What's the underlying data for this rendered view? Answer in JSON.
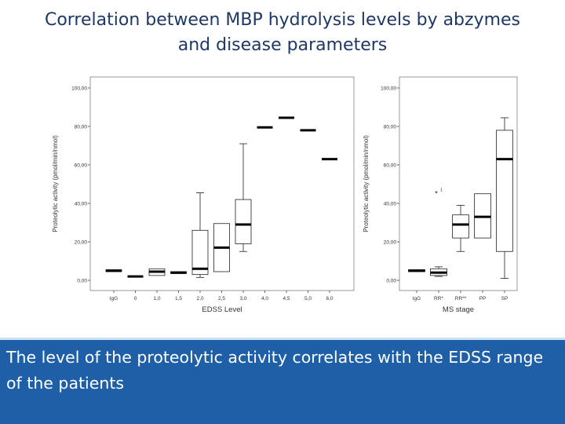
{
  "title": {
    "line1": "Correlation between MBP hydrolysis levels by abzymes",
    "line2": "and disease parameters"
  },
  "caption": "The level of the proteolytic activity correlates with the EDSS range of the patients",
  "colors": {
    "title": "#1f3864",
    "caption_background": "#1f5fa8",
    "caption_text": "#ffffff",
    "plot_background": "#ffffff",
    "box_fill": "#ffffff",
    "median": "#000000"
  },
  "chart_data": [
    {
      "type": "boxplot",
      "xlabel": "EDSS Level",
      "ylabel": "Proteolytic activity (pmol/min/nmol)",
      "ylim": [
        0,
        100
      ],
      "yticks": [
        "0,00",
        "20,00",
        "40,00",
        "60,00",
        "80,00",
        "100,00"
      ],
      "categories": [
        "IgG",
        "0",
        "1,0",
        "1,5",
        "2,0",
        "2,5",
        "3,0",
        "4,0",
        "4,5",
        "5,0",
        "6,0"
      ],
      "boxes": [
        {
          "min": 4.5,
          "q1": 4.5,
          "median": 5,
          "q3": 5.5,
          "max": 5.5
        },
        {
          "min": 2,
          "q1": 2,
          "median": 2,
          "q3": 2,
          "max": 2
        },
        {
          "min": 2.5,
          "q1": 2.5,
          "median": 4.5,
          "q3": 6,
          "max": 6
        },
        {
          "min": 3.5,
          "q1": 3.5,
          "median": 4,
          "q3": 4.5,
          "max": 4.5
        },
        {
          "min": 1.5,
          "q1": 3,
          "median": 6,
          "q3": 26,
          "max": 45.5
        },
        {
          "min": 4.5,
          "q1": 4.5,
          "median": 17,
          "q3": 29.5,
          "max": 29.5
        },
        {
          "min": 15,
          "q1": 19,
          "median": 29,
          "q3": 42,
          "max": 71
        },
        {
          "min": 79.5,
          "q1": 79.5,
          "median": 79.5,
          "q3": 79.5,
          "max": 79.5
        },
        {
          "min": 84.5,
          "q1": 84.5,
          "median": 84.5,
          "q3": 84.5,
          "max": 84.5
        },
        {
          "min": 78,
          "q1": 78,
          "median": 78,
          "q3": 78,
          "max": 78
        },
        {
          "min": 63,
          "q1": 63,
          "median": 63,
          "q3": 63,
          "max": 63
        }
      ],
      "outliers": []
    },
    {
      "type": "boxplot",
      "xlabel": "MS stage",
      "ylabel": "Proteolytic activity (pmol/min/nmol)",
      "ylim": [
        0,
        100
      ],
      "yticks": [
        "0,00",
        "20,00",
        "40,00",
        "60,00",
        "80,00",
        "100,00"
      ],
      "categories": [
        "IgG",
        "RR*",
        "RR**",
        "PP",
        "SP"
      ],
      "boxes": [
        {
          "min": 4.5,
          "q1": 4.5,
          "median": 5,
          "q3": 5.5,
          "max": 5.5
        },
        {
          "min": 2,
          "q1": 2.5,
          "median": 4,
          "q3": 6,
          "max": 7
        },
        {
          "min": 15,
          "q1": 22,
          "median": 29,
          "q3": 34,
          "max": 39
        },
        {
          "min": 22,
          "q1": 22,
          "median": 33,
          "q3": 45,
          "max": 45
        },
        {
          "min": 1,
          "q1": 15,
          "median": 63,
          "q3": 78,
          "max": 84.5
        }
      ],
      "outliers": [
        {
          "category": "RR*",
          "value": 45.5,
          "marker": "*",
          "label": "1"
        }
      ]
    }
  ]
}
